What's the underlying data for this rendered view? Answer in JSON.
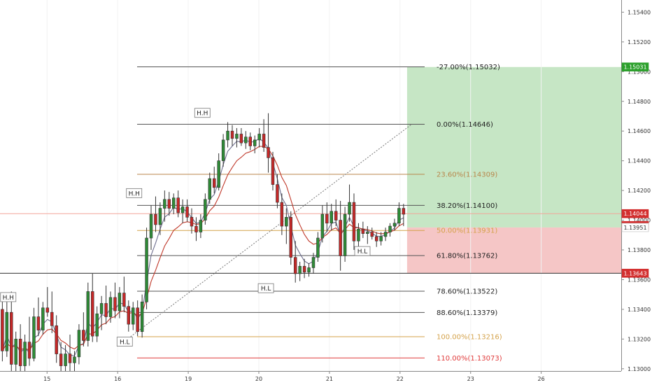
{
  "chart_data": {
    "type": "candlestick",
    "ylim": [
      1.12985,
      1.15482
    ],
    "xlim": [
      0,
      26.4
    ],
    "y_ticks": [
      "1.15400",
      "1.15200",
      "1.15000",
      "1.14800",
      "1.14600",
      "1.14400",
      "1.14200",
      "1.14000",
      "1.13800",
      "1.13600",
      "1.13400",
      "1.13200",
      "1.13000"
    ],
    "y_tick_values": [
      1.154,
      1.152,
      1.15,
      1.148,
      1.146,
      1.144,
      1.142,
      1.14,
      1.138,
      1.136,
      1.134,
      1.132,
      1.13
    ],
    "x_ticks": [
      {
        "label": "15",
        "x": 2
      },
      {
        "label": "16",
        "x": 5
      },
      {
        "label": "19",
        "x": 8
      },
      {
        "label": "20",
        "x": 11
      },
      {
        "label": "21",
        "x": 14
      },
      {
        "label": "22",
        "x": 17
      },
      {
        "label": "23",
        "x": 20
      },
      {
        "label": "26",
        "x": 23
      }
    ],
    "fib_levels": [
      {
        "label": "-27.00%(1.15032)",
        "price": 1.15032,
        "color": "#555555"
      },
      {
        "label": "0.00%(1.14646)",
        "price": 1.14646,
        "color": "#555555"
      },
      {
        "label": "23.60%(1.14309)",
        "price": 1.14309,
        "color": "#b8864b"
      },
      {
        "label": "38.20%(1.14100)",
        "price": 1.141,
        "color": "#555555"
      },
      {
        "label": "50.00%(1.13931)",
        "price": 1.13931,
        "color": "#d4a24a"
      },
      {
        "label": "61.80%(1.13762)",
        "price": 1.13762,
        "color": "#555555"
      },
      {
        "label": "78.60%(1.13522)",
        "price": 1.13522,
        "color": "#555555"
      },
      {
        "label": "88.60%(1.13379)",
        "price": 1.13379,
        "color": "#555555"
      },
      {
        "label": "100.00%(1.13216)",
        "price": 1.13216,
        "color": "#d4a24a"
      },
      {
        "label": "110.00%(1.13073)",
        "price": 1.13073,
        "color": "#e03a3a"
      }
    ],
    "price_tags": [
      {
        "label": "1.15031",
        "price": 1.15031,
        "bg": "#2ca02c",
        "fg": "#ffffff"
      },
      {
        "label": "1.14044",
        "price": 1.14044,
        "bg": "#d32f2f",
        "fg": "#ffffff"
      },
      {
        "label": "31:02",
        "price": 1.13964,
        "bg": "#d32f2f",
        "fg": "#ffffff"
      },
      {
        "label": "1.13951",
        "price": 1.13951,
        "bg": "#ffffff",
        "fg": "#333333"
      },
      {
        "label": "1.13643",
        "price": 1.13643,
        "bg": "#d32f2f",
        "fg": "#ffffff"
      }
    ],
    "hl_labels": [
      {
        "label": "H.H",
        "x": 8.6,
        "price": 1.1472
      },
      {
        "label": "H.H",
        "x": 5.7,
        "price": 1.1418
      },
      {
        "label": "H.H",
        "x": 0.35,
        "price": 1.1348
      },
      {
        "label": "H.L",
        "x": 5.3,
        "price": 1.1318
      },
      {
        "label": "H.L",
        "x": 11.3,
        "price": 1.1354
      },
      {
        "label": "H.L",
        "x": 15.4,
        "price": 1.1379
      }
    ],
    "current_price": 1.14044,
    "upper_line_price": 1.13643,
    "target_zone": {
      "x_start": 17.3,
      "top": 1.15031,
      "bottom": 1.13951
    },
    "stop_zone": {
      "x_start": 17.3,
      "top": 1.13951,
      "bottom": 1.13643
    },
    "trend_line": {
      "x1": 5.55,
      "y1": 1.13216,
      "x2": 17.5,
      "y2": 1.14646
    },
    "candles": [
      [
        1.134,
        1.1348,
        1.1305,
        1.1312
      ],
      [
        1.1312,
        1.1345,
        1.1308,
        1.1338
      ],
      [
        1.1338,
        1.1352,
        1.1298,
        1.1303
      ],
      [
        1.1303,
        1.1325,
        1.1295,
        1.132
      ],
      [
        1.132,
        1.133,
        1.1296,
        1.1302
      ],
      [
        1.1302,
        1.1323,
        1.1295,
        1.1318
      ],
      [
        1.1318,
        1.1335,
        1.1302,
        1.1307
      ],
      [
        1.1307,
        1.1341,
        1.1305,
        1.1335
      ],
      [
        1.1335,
        1.1348,
        1.1322,
        1.1326
      ],
      [
        1.1326,
        1.1345,
        1.1323,
        1.1341
      ],
      [
        1.1341,
        1.1355,
        1.1335,
        1.1338
      ],
      [
        1.1338,
        1.1352,
        1.1324,
        1.1329
      ],
      [
        1.1329,
        1.1336,
        1.1304,
        1.131
      ],
      [
        1.131,
        1.1318,
        1.1295,
        1.1302
      ],
      [
        1.1302,
        1.1316,
        1.1288,
        1.131
      ],
      [
        1.131,
        1.1323,
        1.1298,
        1.1304
      ],
      [
        1.1304,
        1.1312,
        1.1292,
        1.1308
      ],
      [
        1.1308,
        1.133,
        1.1303,
        1.1326
      ],
      [
        1.1326,
        1.1338,
        1.1315,
        1.1319
      ],
      [
        1.1319,
        1.1358,
        1.1315,
        1.1352
      ],
      [
        1.1352,
        1.1364,
        1.1318,
        1.1322
      ],
      [
        1.1322,
        1.1342,
        1.1318,
        1.1337
      ],
      [
        1.1337,
        1.1349,
        1.1326,
        1.1344
      ],
      [
        1.1344,
        1.1356,
        1.133,
        1.1335
      ],
      [
        1.1335,
        1.1352,
        1.1331,
        1.1348
      ],
      [
        1.1348,
        1.1358,
        1.1334,
        1.1339
      ],
      [
        1.1339,
        1.1355,
        1.1334,
        1.1351
      ],
      [
        1.1351,
        1.1362,
        1.1338,
        1.1342
      ],
      [
        1.1342,
        1.1346,
        1.1325,
        1.133
      ],
      [
        1.133,
        1.1345,
        1.1326,
        1.1341
      ],
      [
        1.1341,
        1.1346,
        1.1322,
        1.1325
      ],
      [
        1.1325,
        1.135,
        1.1321,
        1.1345
      ],
      [
        1.1345,
        1.1395,
        1.134,
        1.1388
      ],
      [
        1.1388,
        1.141,
        1.138,
        1.1404
      ],
      [
        1.1404,
        1.1416,
        1.1392,
        1.1397
      ],
      [
        1.1397,
        1.1412,
        1.139,
        1.1408
      ],
      [
        1.1408,
        1.142,
        1.1399,
        1.1414
      ],
      [
        1.1414,
        1.1419,
        1.1403,
        1.1408
      ],
      [
        1.1408,
        1.1418,
        1.1404,
        1.1415
      ],
      [
        1.1415,
        1.142,
        1.1402,
        1.1405
      ],
      [
        1.1405,
        1.1414,
        1.1398,
        1.1409
      ],
      [
        1.1409,
        1.1414,
        1.1399,
        1.1402
      ],
      [
        1.1402,
        1.1408,
        1.1391,
        1.1396
      ],
      [
        1.1396,
        1.1402,
        1.1386,
        1.1392
      ],
      [
        1.1392,
        1.1404,
        1.1388,
        1.14
      ],
      [
        1.14,
        1.1418,
        1.1397,
        1.1414
      ],
      [
        1.1414,
        1.1432,
        1.1411,
        1.1428
      ],
      [
        1.1428,
        1.1436,
        1.1418,
        1.1422
      ],
      [
        1.1422,
        1.1445,
        1.142,
        1.144
      ],
      [
        1.144,
        1.1458,
        1.1436,
        1.1454
      ],
      [
        1.1454,
        1.1466,
        1.1449,
        1.146
      ],
      [
        1.146,
        1.1464,
        1.145,
        1.1455
      ],
      [
        1.1455,
        1.1462,
        1.1449,
        1.1458
      ],
      [
        1.1458,
        1.1462,
        1.145,
        1.1452
      ],
      [
        1.1452,
        1.146,
        1.1448,
        1.1456
      ],
      [
        1.1456,
        1.1459,
        1.1447,
        1.145
      ],
      [
        1.145,
        1.1457,
        1.1445,
        1.1454
      ],
      [
        1.1454,
        1.1462,
        1.1449,
        1.1458
      ],
      [
        1.1458,
        1.1468,
        1.1446,
        1.1449
      ],
      [
        1.1449,
        1.1472,
        1.1432,
        1.1442
      ],
      [
        1.1442,
        1.1446,
        1.142,
        1.1424
      ],
      [
        1.1424,
        1.1431,
        1.1408,
        1.1412
      ],
      [
        1.1412,
        1.1418,
        1.139,
        1.1396
      ],
      [
        1.1396,
        1.1408,
        1.1384,
        1.1402
      ],
      [
        1.1402,
        1.1406,
        1.137,
        1.1375
      ],
      [
        1.1375,
        1.1386,
        1.1358,
        1.1364
      ],
      [
        1.1364,
        1.1372,
        1.1359,
        1.1369
      ],
      [
        1.1369,
        1.1374,
        1.1361,
        1.1365
      ],
      [
        1.1365,
        1.1371,
        1.1362,
        1.1368
      ],
      [
        1.1368,
        1.1378,
        1.1364,
        1.1375
      ],
      [
        1.1375,
        1.1392,
        1.1372,
        1.1388
      ],
      [
        1.1388,
        1.141,
        1.1385,
        1.1404
      ],
      [
        1.1404,
        1.1412,
        1.1392,
        1.1398
      ],
      [
        1.1398,
        1.1411,
        1.1393,
        1.1406
      ],
      [
        1.1406,
        1.1414,
        1.1396,
        1.14
      ],
      [
        1.14,
        1.1413,
        1.1366,
        1.1376
      ],
      [
        1.1376,
        1.1409,
        1.1372,
        1.1404
      ],
      [
        1.1404,
        1.1424,
        1.1399,
        1.1412
      ],
      [
        1.1412,
        1.1418,
        1.138,
        1.1386
      ],
      [
        1.1386,
        1.1398,
        1.1382,
        1.1394
      ],
      [
        1.1394,
        1.1399,
        1.1388,
        1.1391
      ],
      [
        1.1391,
        1.1396,
        1.1384,
        1.1392
      ],
      [
        1.1392,
        1.1395,
        1.1387,
        1.1389
      ],
      [
        1.1389,
        1.1392,
        1.1382,
        1.1386
      ],
      [
        1.1386,
        1.1392,
        1.1383,
        1.1389
      ],
      [
        1.1389,
        1.1395,
        1.1386,
        1.1392
      ],
      [
        1.1392,
        1.1398,
        1.1389,
        1.1396
      ],
      [
        1.1396,
        1.1401,
        1.1393,
        1.1398
      ],
      [
        1.1398,
        1.1412,
        1.1396,
        1.1408
      ],
      [
        1.1408,
        1.1411,
        1.1396,
        1.1404
      ]
    ]
  }
}
